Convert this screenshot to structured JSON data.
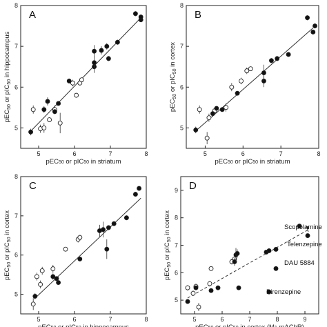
{
  "chart_data": [
    {
      "type": "scatter",
      "panel_label": "A",
      "xlabel": [
        "pEC",
        "50",
        " or pIC",
        "50",
        " in striatum"
      ],
      "ylabel": [
        "pEC",
        "50",
        " or pIC",
        "50",
        " in hippocampus"
      ],
      "xlim": [
        4.5,
        8.0
      ],
      "ylim": [
        4.5,
        8.0
      ],
      "xticks": [
        5,
        6,
        7,
        8
      ],
      "yticks": [
        5,
        6,
        7,
        8
      ],
      "fit": {
        "style": "solid",
        "x": [
          4.78,
          7.85
        ],
        "y": [
          4.92,
          7.7
        ]
      },
      "series": [
        {
          "fill": "open",
          "points": [
            {
              "x": 4.85,
              "y": 5.45,
              "err": 0.1
            },
            {
              "x": 5.05,
              "y": 4.98,
              "err": 0.1
            },
            {
              "x": 5.15,
              "y": 5.0,
              "err": 0.12
            },
            {
              "x": 5.3,
              "y": 5.2,
              "err": 0.05
            },
            {
              "x": 5.45,
              "y": 5.45,
              "err": 0.1
            },
            {
              "x": 5.6,
              "y": 5.12,
              "err": 0.25
            },
            {
              "x": 5.95,
              "y": 6.1,
              "err": 0.08
            },
            {
              "x": 6.05,
              "y": 5.8,
              "err": 0.05
            },
            {
              "x": 6.15,
              "y": 6.1,
              "err": 0.05
            },
            {
              "x": 6.2,
              "y": 6.18,
              "err": 0.05
            }
          ]
        },
        {
          "fill": "filled",
          "points": [
            {
              "x": 4.78,
              "y": 4.9,
              "err": 0.08
            },
            {
              "x": 5.15,
              "y": 5.45,
              "err": 0.08
            },
            {
              "x": 5.25,
              "y": 5.65,
              "err": 0.1
            },
            {
              "x": 5.45,
              "y": 5.4,
              "err": 0.06
            },
            {
              "x": 5.55,
              "y": 5.6,
              "err": 0.05
            },
            {
              "x": 5.85,
              "y": 6.15,
              "err": 0.06
            },
            {
              "x": 6.55,
              "y": 6.5,
              "err": 0.15
            },
            {
              "x": 6.55,
              "y": 6.6,
              "err": 0.15
            },
            {
              "x": 6.55,
              "y": 6.88,
              "err": 0.15
            },
            {
              "x": 6.75,
              "y": 6.9,
              "err": 0.1
            },
            {
              "x": 6.9,
              "y": 7.0,
              "err": 0.08
            },
            {
              "x": 6.95,
              "y": 6.7,
              "err": 0.06
            },
            {
              "x": 7.2,
              "y": 7.1,
              "err": 0.06
            },
            {
              "x": 7.7,
              "y": 7.8,
              "err": 0.06
            },
            {
              "x": 7.85,
              "y": 7.65,
              "err": 0.06
            },
            {
              "x": 7.85,
              "y": 7.72,
              "err": 0.06
            }
          ]
        }
      ]
    },
    {
      "type": "scatter",
      "panel_label": "B",
      "xlabel": [
        "pEC",
        "50",
        " or pIC",
        "50",
        " in striatum"
      ],
      "ylabel": [
        "pEC",
        "50",
        " or pIC",
        "50",
        " in cortex"
      ],
      "xlim": [
        4.5,
        8.0
      ],
      "ylim": [
        4.5,
        8.0
      ],
      "xticks": [
        5,
        6,
        7,
        8
      ],
      "yticks": [
        5,
        6,
        7,
        8
      ],
      "fit": {
        "style": "solid",
        "x": [
          4.78,
          7.85
        ],
        "y": [
          4.95,
          7.45
        ]
      },
      "series": [
        {
          "fill": "open",
          "points": [
            {
              "x": 4.85,
              "y": 5.45,
              "err": 0.1
            },
            {
              "x": 5.05,
              "y": 4.75,
              "err": 0.15
            },
            {
              "x": 5.1,
              "y": 5.25,
              "err": 0.1
            },
            {
              "x": 5.25,
              "y": 5.42,
              "err": 0.05
            },
            {
              "x": 5.55,
              "y": 5.5,
              "err": 0.1
            },
            {
              "x": 5.7,
              "y": 6.0,
              "err": 0.1
            },
            {
              "x": 5.95,
              "y": 6.15,
              "err": 0.08
            },
            {
              "x": 6.1,
              "y": 6.4,
              "err": 0.08
            },
            {
              "x": 6.2,
              "y": 6.45,
              "err": 0.05
            }
          ]
        },
        {
          "fill": "filled",
          "points": [
            {
              "x": 4.75,
              "y": 4.95,
              "err": 0.08
            },
            {
              "x": 5.2,
              "y": 5.35,
              "err": 0.08
            },
            {
              "x": 5.3,
              "y": 5.48,
              "err": 0.05
            },
            {
              "x": 5.45,
              "y": 5.45,
              "err": 0.05
            },
            {
              "x": 5.85,
              "y": 5.85,
              "err": 0.05
            },
            {
              "x": 6.55,
              "y": 6.15,
              "err": 0.15
            },
            {
              "x": 6.55,
              "y": 6.35,
              "err": 0.2
            },
            {
              "x": 6.75,
              "y": 6.65,
              "err": 0.06
            },
            {
              "x": 6.9,
              "y": 6.7,
              "err": 0.06
            },
            {
              "x": 7.2,
              "y": 6.8,
              "err": 0.06
            },
            {
              "x": 7.7,
              "y": 7.7,
              "err": 0.06
            },
            {
              "x": 7.85,
              "y": 7.35,
              "err": 0.06
            },
            {
              "x": 7.9,
              "y": 7.5,
              "err": 0.06
            }
          ]
        }
      ]
    },
    {
      "type": "scatter",
      "panel_label": "C",
      "xlabel": [
        "pEC",
        "50",
        " or pIC",
        "50",
        " in hippocampus"
      ],
      "ylabel": [
        "pEC",
        "50",
        " or pIC",
        "50",
        " in cortex"
      ],
      "xlim": [
        4.5,
        8.0
      ],
      "ylim": [
        4.5,
        8.0
      ],
      "xticks": [
        5,
        6,
        7,
        8
      ],
      "yticks": [
        5,
        6,
        7,
        8
      ],
      "fit": {
        "style": "solid",
        "x": [
          4.9,
          7.85
        ],
        "y": [
          4.9,
          7.45
        ]
      },
      "series": [
        {
          "fill": "open",
          "points": [
            {
              "x": 4.85,
              "y": 4.75,
              "err": 0.15
            },
            {
              "x": 4.95,
              "y": 5.45,
              "err": 0.1
            },
            {
              "x": 5.05,
              "y": 5.25,
              "err": 0.1
            },
            {
              "x": 5.1,
              "y": 5.6,
              "err": 0.1
            },
            {
              "x": 5.4,
              "y": 5.65,
              "err": 0.1
            },
            {
              "x": 5.75,
              "y": 6.15,
              "err": 0.05
            },
            {
              "x": 6.1,
              "y": 6.4,
              "err": 0.08
            },
            {
              "x": 6.15,
              "y": 6.45,
              "err": 0.05
            }
          ]
        },
        {
          "fill": "filled",
          "points": [
            {
              "x": 4.9,
              "y": 4.95,
              "err": 0.08
            },
            {
              "x": 5.4,
              "y": 5.45,
              "err": 0.08
            },
            {
              "x": 5.5,
              "y": 5.4,
              "err": 0.05
            },
            {
              "x": 5.55,
              "y": 5.3,
              "err": 0.05
            },
            {
              "x": 6.15,
              "y": 5.9,
              "err": 0.05
            },
            {
              "x": 6.7,
              "y": 6.62,
              "err": 0.15
            },
            {
              "x": 6.8,
              "y": 6.65,
              "err": 0.2
            },
            {
              "x": 6.9,
              "y": 6.15,
              "err": 0.25
            },
            {
              "x": 6.95,
              "y": 6.7,
              "err": 0.06
            },
            {
              "x": 7.1,
              "y": 6.8,
              "err": 0.06
            },
            {
              "x": 7.45,
              "y": 6.95,
              "err": 0.06
            },
            {
              "x": 7.7,
              "y": 7.55,
              "err": 0.06
            },
            {
              "x": 7.8,
              "y": 7.7,
              "err": 0.06
            }
          ]
        }
      ]
    },
    {
      "type": "scatter",
      "panel_label": "D",
      "xlabel": [
        "pEC",
        "50",
        " or pIC",
        "50",
        " in cortex (M",
        "1",
        " mAChR)"
      ],
      "ylabel": [
        "pEC",
        "50",
        " or pIC",
        "50",
        " in cortex"
      ],
      "xlim": [
        4.5,
        9.5
      ],
      "ylim": [
        4.5,
        9.5
      ],
      "xticks": [
        5,
        6,
        7,
        8,
        9
      ],
      "yticks": [
        5,
        6,
        7,
        8,
        9
      ],
      "fit": {
        "style": "dashed",
        "x": [
          4.75,
          9.15
        ],
        "y": [
          5.08,
          7.58
        ]
      },
      "annotations": [
        "Scopolamine",
        "Telenzepine",
        "DAU 5884",
        "Pirenzepine"
      ],
      "series": [
        {
          "fill": "open",
          "points": [
            {
              "x": 4.75,
              "y": 5.45,
              "err": 0.1
            },
            {
              "x": 4.95,
              "y": 5.25,
              "err": 0.1
            },
            {
              "x": 5.05,
              "y": 5.5,
              "err": 0.1
            },
            {
              "x": 5.15,
              "y": 4.75,
              "err": 0.15
            },
            {
              "x": 5.55,
              "y": 5.6,
              "err": 0.1
            },
            {
              "x": 5.6,
              "y": 6.15,
              "err": 0.05
            },
            {
              "x": 6.35,
              "y": 6.4,
              "err": 0.1
            },
            {
              "x": 6.45,
              "y": 6.5,
              "err": 0.05
            }
          ]
        },
        {
          "fill": "filled",
          "points": [
            {
              "x": 4.75,
              "y": 4.95,
              "err": 0.08
            },
            {
              "x": 5.05,
              "y": 5.45,
              "err": 0.05
            },
            {
              "x": 5.6,
              "y": 5.35,
              "err": 0.05
            },
            {
              "x": 5.85,
              "y": 5.45,
              "err": 0.05
            },
            {
              "x": 6.45,
              "y": 6.4,
              "err": 0.15
            },
            {
              "x": 6.5,
              "y": 6.65,
              "err": 0.25
            },
            {
              "x": 6.55,
              "y": 6.7,
              "err": 0.15
            },
            {
              "x": 6.6,
              "y": 5.45,
              "err": 0.08
            },
            {
              "x": 7.6,
              "y": 6.75,
              "err": 0.06
            },
            {
              "x": 7.7,
              "y": 6.8,
              "err": 0.06
            },
            {
              "x": 7.7,
              "y": 5.3,
              "err": 0.06
            },
            {
              "x": 7.95,
              "y": 6.15,
              "err": 0.06
            },
            {
              "x": 7.95,
              "y": 6.85,
              "err": 0.06
            },
            {
              "x": 8.8,
              "y": 7.7,
              "err": 0.06
            },
            {
              "x": 9.1,
              "y": 7.35,
              "err": 0.06
            }
          ]
        }
      ]
    }
  ]
}
